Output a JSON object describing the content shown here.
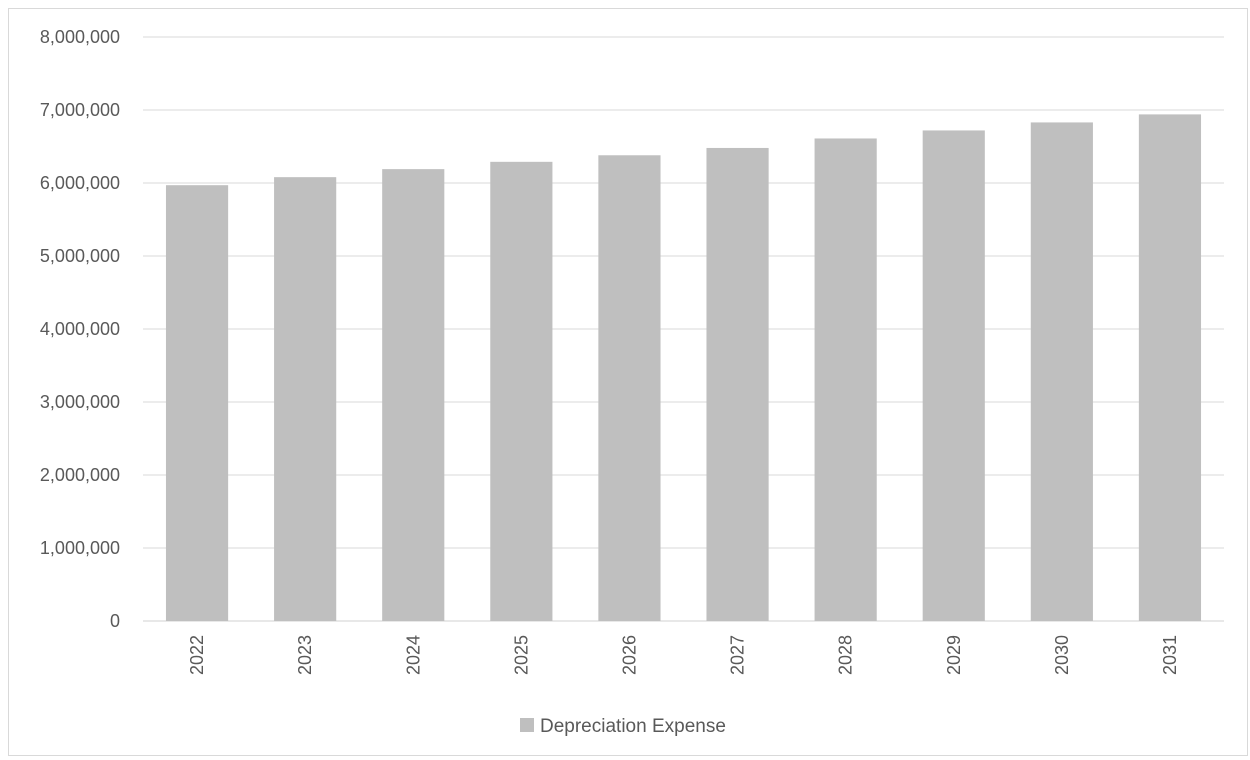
{
  "chart_data": {
    "type": "bar",
    "title": "",
    "xlabel": "",
    "ylabel": "",
    "categories": [
      "2022",
      "2023",
      "2024",
      "2025",
      "2026",
      "2027",
      "2028",
      "2029",
      "2030",
      "2031"
    ],
    "series": [
      {
        "name": "Depreciation Expense",
        "color": "#bfbfbf",
        "values": [
          5970000,
          6080000,
          6190000,
          6290000,
          6380000,
          6480000,
          6610000,
          6720000,
          6830000,
          6940000
        ]
      }
    ],
    "ylim": [
      0,
      8000000
    ],
    "yticks": [
      0,
      1000000,
      2000000,
      3000000,
      4000000,
      5000000,
      6000000,
      7000000,
      8000000
    ],
    "ytick_labels": [
      "0",
      "1,000,000",
      "2,000,000",
      "3,000,000",
      "4,000,000",
      "5,000,000",
      "6,000,000",
      "7,000,000",
      "8,000,000"
    ],
    "grid": true,
    "legend_position": "bottom",
    "x_tick_rotation": "vertical"
  }
}
